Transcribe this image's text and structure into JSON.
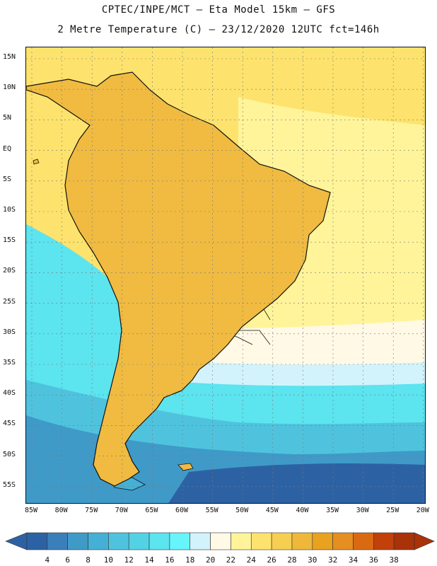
{
  "header": {
    "line1": "CPTEC/INPE/MCT –  Eta Model 15km – GFS",
    "line2": "2 Metre Temperature (C) – 23/12/2020 12UTC fct=146h"
  },
  "axes": {
    "latitude_labels": [
      "15N",
      "10N",
      "5N",
      "EQ",
      "5S",
      "10S",
      "15S",
      "20S",
      "25S",
      "30S",
      "35S",
      "40S",
      "45S",
      "50S",
      "55S"
    ],
    "longitude_labels": [
      "85W",
      "80W",
      "75W",
      "70W",
      "65W",
      "60W",
      "55W",
      "50W",
      "45W",
      "40W",
      "35W",
      "30W",
      "25W",
      "20W"
    ]
  },
  "colorbar": {
    "labels": [
      "4",
      "6",
      "8",
      "10",
      "12",
      "14",
      "16",
      "18",
      "20",
      "22",
      "24",
      "26",
      "28",
      "30",
      "32",
      "34",
      "36",
      "38"
    ],
    "colors": [
      "#2c62a4",
      "#3a7fba",
      "#3f9ac8",
      "#45b0d6",
      "#4fc3de",
      "#53d2e6",
      "#5ce4ef",
      "#66f5fb",
      "#d3f3fc",
      "#fff9e6",
      "#fff49a",
      "#fde36d",
      "#f6cf52",
      "#efb83a",
      "#e9a120",
      "#e58e21",
      "#d96a11",
      "#c24009",
      "#a93209"
    ]
  },
  "map": {
    "region": "South America",
    "field_colors": {
      "ocean_north": "#fde36d",
      "ocean_north_light": "#fff49a",
      "ocean_mid": "#fff9e6",
      "ocean_cool": "#d3f3fc",
      "ocean_cold": "#5ce4ef",
      "ocean_colder": "#4fc3de",
      "ocean_deep": "#3f9ac8",
      "ocean_deepest": "#2c62a4",
      "land_base": "#f0bb40",
      "land_hot": "#e58e21",
      "land_hottest": "#d96a11",
      "andes": "#45b0d6",
      "andes_cold": "#3a7fba",
      "andes_snow": "#d3f3fc",
      "coastline": "#111111"
    }
  }
}
